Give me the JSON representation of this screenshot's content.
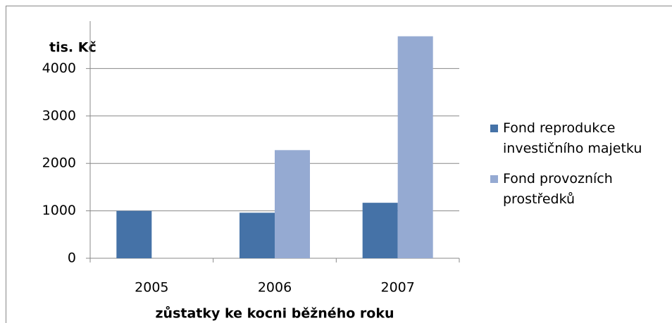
{
  "chart_data": {
    "type": "bar",
    "y_axis_label": "tis. Kč",
    "x_axis_label": "zůstatky ke kocni běžného roku",
    "categories": [
      "2005",
      "2006",
      "2007"
    ],
    "series": [
      {
        "name": "Fond reprodukce investičního majetku",
        "color": "#4572a7",
        "values": [
          1000,
          960,
          1170
        ]
      },
      {
        "name": "Fond provozních prostředků",
        "color": "#95aad2",
        "values": [
          0,
          2280,
          4680
        ]
      }
    ],
    "ylim": [
      0,
      5000
    ],
    "yticks": [
      0,
      1000,
      2000,
      3000,
      4000
    ],
    "grid": true,
    "legend": "right"
  }
}
